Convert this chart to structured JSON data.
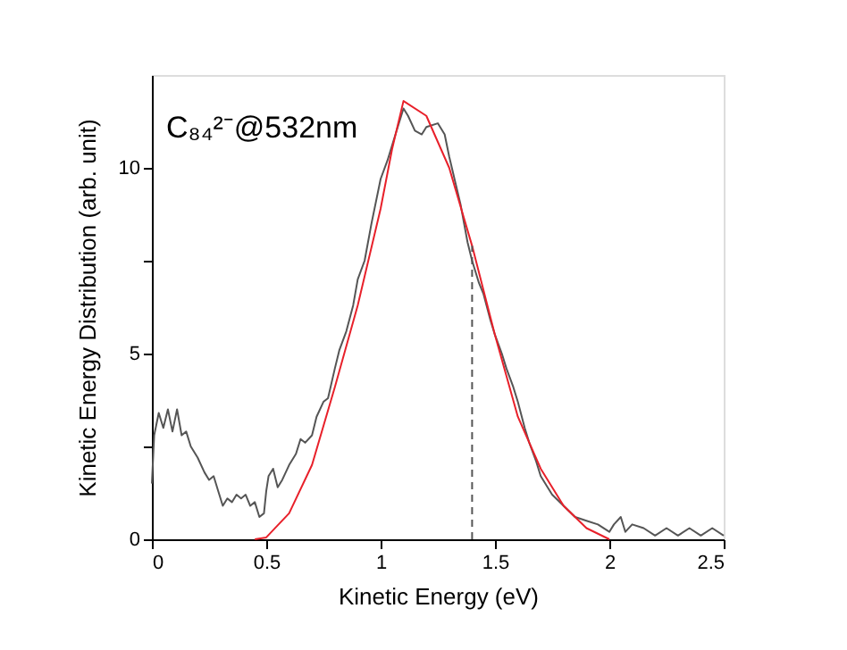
{
  "chart_data": {
    "type": "line",
    "xlabel": "Kinetic Energy (eV)",
    "ylabel": "Kinetic Energy Distribution (arb. unit)",
    "annotations": [
      "C₈₄²⁻@532nm"
    ],
    "xlim": [
      0,
      2.5
    ],
    "xticks": [
      0,
      0.5,
      1,
      1.5,
      2,
      2.5
    ],
    "ylim": [
      0,
      12.5
    ],
    "yticks": [
      0,
      {
        "value": 2.5,
        "label": null
      },
      5,
      {
        "value": 7.5,
        "label": null
      },
      10
    ],
    "grid": false,
    "marker": "none",
    "series": [
      {
        "color": "#555555",
        "line_style": "solid",
        "x": [
          0,
          0.01,
          0.03,
          0.05,
          0.07,
          0.09,
          0.11,
          0.13,
          0.15,
          0.17,
          0.2,
          0.23,
          0.25,
          0.27,
          0.29,
          0.31,
          0.33,
          0.35,
          0.37,
          0.39,
          0.41,
          0.43,
          0.45,
          0.47,
          0.49,
          0.5,
          0.51,
          0.53,
          0.55,
          0.57,
          0.6,
          0.63,
          0.65,
          0.67,
          0.7,
          0.72,
          0.75,
          0.77,
          0.8,
          0.82,
          0.85,
          0.88,
          0.9,
          0.93,
          0.96,
          1.0,
          1.03,
          1.05,
          1.08,
          1.1,
          1.12,
          1.15,
          1.18,
          1.2,
          1.25,
          1.28,
          1.3,
          1.35,
          1.38,
          1.4,
          1.43,
          1.45,
          1.48,
          1.5,
          1.53,
          1.55,
          1.58,
          1.6,
          1.63,
          1.65,
          1.68,
          1.7,
          1.73,
          1.75,
          1.8,
          1.85,
          1.9,
          1.95,
          2.0,
          2.02,
          2.05,
          2.07,
          2.1,
          2.15,
          2.2,
          2.25,
          2.3,
          2.35,
          2.4,
          2.45,
          2.5
        ],
        "values": [
          1.5,
          2.8,
          3.4,
          3.0,
          3.5,
          2.9,
          3.5,
          2.8,
          2.9,
          2.5,
          2.2,
          1.8,
          1.6,
          1.7,
          1.3,
          0.9,
          1.1,
          1.0,
          1.2,
          1.1,
          1.2,
          0.9,
          1.0,
          0.6,
          0.7,
          1.3,
          1.7,
          1.9,
          1.4,
          1.6,
          2.0,
          2.3,
          2.7,
          2.6,
          2.8,
          3.3,
          3.7,
          3.8,
          4.6,
          5.1,
          5.6,
          6.3,
          7.0,
          7.5,
          8.5,
          9.7,
          10.2,
          10.6,
          11.2,
          11.6,
          11.4,
          11.0,
          10.9,
          11.1,
          11.2,
          10.9,
          10.3,
          9.0,
          8.0,
          7.5,
          6.9,
          6.6,
          5.9,
          5.5,
          5.0,
          4.6,
          4.1,
          3.7,
          3.0,
          2.6,
          2.1,
          1.7,
          1.4,
          1.2,
          0.9,
          0.6,
          0.5,
          0.4,
          0.2,
          0.4,
          0.6,
          0.2,
          0.4,
          0.3,
          0.1,
          0.3,
          0.1,
          0.3,
          0.1,
          0.3,
          0.1
        ]
      },
      {
        "color": "#e8202a",
        "line_style": "solid",
        "x": [
          0.45,
          0.5,
          0.6,
          0.7,
          0.8,
          0.9,
          1.0,
          1.05,
          1.1,
          1.2,
          1.3,
          1.4,
          1.5,
          1.6,
          1.7,
          1.8,
          1.9,
          2.0
        ],
        "values": [
          0,
          0.05,
          0.7,
          2.0,
          4.1,
          6.3,
          8.9,
          10.5,
          11.8,
          11.4,
          10.0,
          7.9,
          5.5,
          3.3,
          1.9,
          0.9,
          0.3,
          0
        ]
      },
      {
        "color": "#555555",
        "line_style": "dashed",
        "x": [
          1.4,
          1.4
        ],
        "values": [
          0,
          7.9
        ]
      }
    ]
  }
}
